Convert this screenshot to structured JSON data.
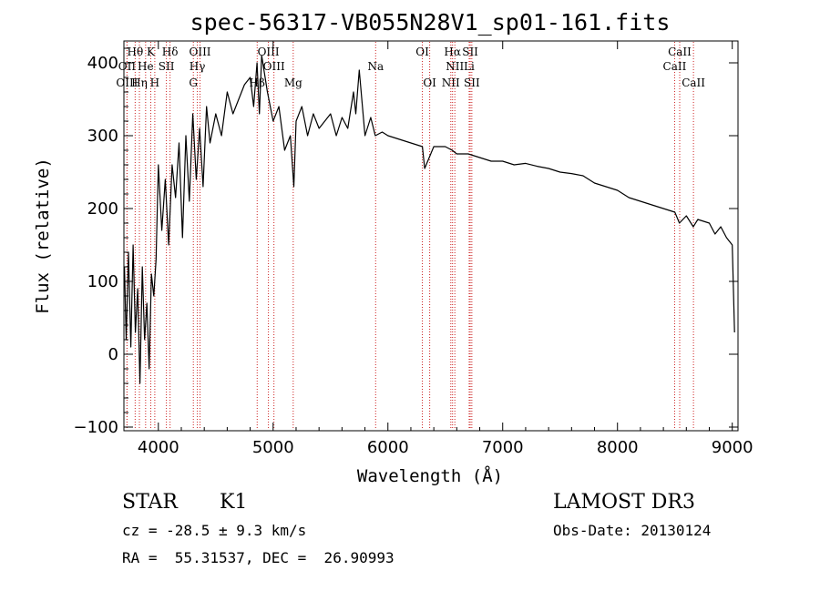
{
  "chart_data": {
    "type": "line",
    "title": "spec-56317-VB055N28V1_sp01-161.fits",
    "xlabel": "Wavelength (Å)",
    "ylabel": "Flux (relative)",
    "xlim": [
      3700,
      9050
    ],
    "ylim": [
      -105,
      430
    ],
    "x_ticks": [
      4000,
      5000,
      6000,
      7000,
      8000,
      9000
    ],
    "y_ticks": [
      -100,
      0,
      100,
      200,
      300,
      400
    ],
    "series": [
      {
        "name": "flux",
        "x": [
          3705,
          3720,
          3740,
          3760,
          3780,
          3800,
          3820,
          3840,
          3860,
          3880,
          3900,
          3920,
          3940,
          3960,
          3980,
          4000,
          4030,
          4060,
          4090,
          4120,
          4150,
          4180,
          4210,
          4240,
          4270,
          4300,
          4330,
          4360,
          4390,
          4420,
          4450,
          4500,
          4550,
          4600,
          4650,
          4700,
          4750,
          4800,
          4830,
          4860,
          4880,
          4900,
          4950,
          5000,
          5050,
          5100,
          5150,
          5180,
          5200,
          5250,
          5300,
          5350,
          5400,
          5450,
          5500,
          5550,
          5600,
          5650,
          5700,
          5720,
          5750,
          5800,
          5850,
          5890,
          5950,
          6000,
          6100,
          6200,
          6300,
          6320,
          6400,
          6500,
          6560,
          6600,
          6700,
          6800,
          6900,
          7000,
          7100,
          7200,
          7300,
          7400,
          7500,
          7600,
          7700,
          7800,
          7900,
          8000,
          8100,
          8200,
          8300,
          8400,
          8500,
          8540,
          8600,
          8660,
          8700,
          8800,
          8850,
          8900,
          8950,
          9000,
          9020
        ],
        "y": [
          120,
          20,
          140,
          10,
          150,
          30,
          90,
          -40,
          120,
          20,
          70,
          -20,
          110,
          80,
          130,
          260,
          170,
          240,
          150,
          260,
          215,
          290,
          160,
          300,
          210,
          330,
          240,
          310,
          230,
          340,
          290,
          330,
          300,
          360,
          330,
          350,
          370,
          380,
          340,
          400,
          330,
          410,
          360,
          320,
          340,
          280,
          300,
          230,
          320,
          340,
          300,
          330,
          310,
          320,
          330,
          300,
          325,
          310,
          360,
          330,
          390,
          300,
          325,
          300,
          305,
          300,
          295,
          290,
          285,
          255,
          285,
          285,
          280,
          275,
          275,
          270,
          265,
          265,
          260,
          262,
          258,
          255,
          250,
          248,
          245,
          235,
          230,
          225,
          215,
          210,
          205,
          200,
          195,
          180,
          190,
          175,
          185,
          180,
          165,
          175,
          160,
          150,
          30
        ]
      }
    ],
    "lines": [
      {
        "label": "Hθ",
        "x": 3798,
        "row": 1
      },
      {
        "label": "K",
        "x": 3934,
        "row": 1
      },
      {
        "label": "Hδ",
        "x": 4102,
        "row": 1
      },
      {
        "label": "OIII",
        "x": 4363,
        "row": 1
      },
      {
        "label": "OIII",
        "x": 4959,
        "row": 1
      },
      {
        "label": "OI",
        "x": 6300,
        "row": 1
      },
      {
        "label": "Hα",
        "x": 6563,
        "row": 1
      },
      {
        "label": "SII",
        "x": 6717,
        "row": 1
      },
      {
        "label": "CaII",
        "x": 8542,
        "row": 1
      },
      {
        "label": "OII",
        "x": 3727,
        "row": 2
      },
      {
        "label": "He",
        "x": 3889,
        "row": 2
      },
      {
        "label": "SII",
        "x": 4070,
        "row": 2
      },
      {
        "label": "Hγ",
        "x": 4340,
        "row": 2
      },
      {
        "label": "OIII",
        "x": 5007,
        "row": 2
      },
      {
        "label": "Na",
        "x": 5893,
        "row": 2
      },
      {
        "label": "NII",
        "x": 6583,
        "row": 2
      },
      {
        "label": "Li",
        "x": 6708,
        "row": 2
      },
      {
        "label": "CaII",
        "x": 8498,
        "row": 2
      },
      {
        "label": "OIII",
        "x": 3727,
        "row": 3
      },
      {
        "label": "Hη",
        "x": 3835,
        "row": 3
      },
      {
        "label": "H",
        "x": 3969,
        "row": 3
      },
      {
        "label": "G",
        "x": 4305,
        "row": 3
      },
      {
        "label": "Hβ",
        "x": 4861,
        "row": 3
      },
      {
        "label": "Mg",
        "x": 5175,
        "row": 3
      },
      {
        "label": "OI",
        "x": 6364,
        "row": 3
      },
      {
        "label": "NII",
        "x": 6548,
        "row": 3
      },
      {
        "label": "SII",
        "x": 6731,
        "row": 3
      },
      {
        "label": "CaII",
        "x": 8662,
        "row": 3
      }
    ]
  },
  "info": {
    "class": "STAR",
    "subclass": "K1",
    "survey": "LAMOST DR3",
    "cz": "cz = -28.5 ± 9.3 km/s",
    "obs_date": "Obs-Date: 20130124",
    "coords": "RA =  55.31537, DEC =  26.90993"
  }
}
